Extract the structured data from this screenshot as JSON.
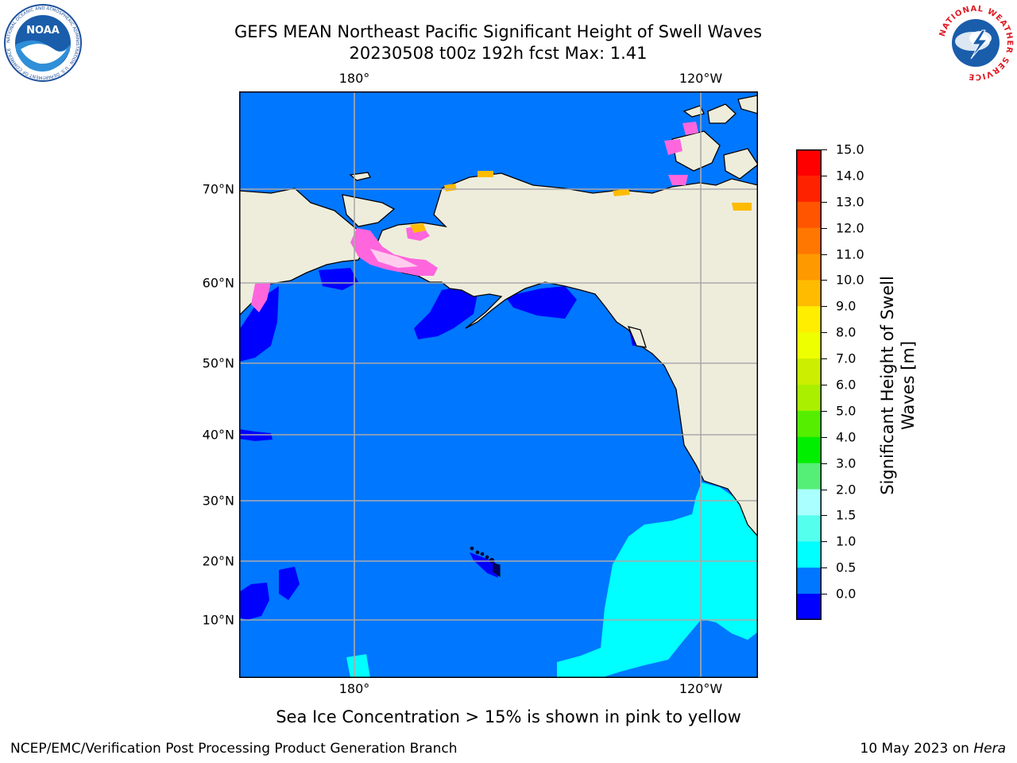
{
  "title_line1": "GEFS MEAN Northeast Pacific Significant Height of Swell Waves",
  "title_line2": "20230508 t00z 192h fcst   Max: 1.41",
  "map": {
    "lon_labels_top": [
      "180°",
      "120°W"
    ],
    "lon_labels_bottom": [
      "180°",
      "120°W"
    ],
    "lat_labels": [
      "70°N",
      "60°N",
      "50°N",
      "40°N",
      "30°N",
      "20°N",
      "10°N"
    ]
  },
  "colorbar": {
    "label_line1": "Significant Height of Swell",
    "label_line2": "Waves [m]",
    "ticks": [
      "15.0",
      "14.0",
      "13.0",
      "12.0",
      "11.0",
      "10.0",
      "9.0",
      "8.0",
      "7.0",
      "6.0",
      "5.0",
      "4.0",
      "3.0",
      "2.0",
      "1.5",
      "1.0",
      "0.5",
      "0.0"
    ],
    "colors": [
      "#ff0000",
      "#ff2200",
      "#ff5500",
      "#ff7700",
      "#ff9900",
      "#ffbb00",
      "#ffee00",
      "#eeff00",
      "#ccee00",
      "#aaee00",
      "#55ee00",
      "#00ee00",
      "#55ee77",
      "#aaffff",
      "#55ffee",
      "#00ffff",
      "#0077ff",
      "#0000ff"
    ]
  },
  "colors": {
    "land": "#eeeddc",
    "ocean_main": "#0077ff",
    "ocean_low": "#0000ff",
    "ocean_mid": "#00ffff",
    "ice": "#ff66dd",
    "grid": "#aaaaaa"
  },
  "ice_note": "Sea Ice Concentration > 15% is shown in pink to yellow",
  "footer_left": "NCEP/EMC/Verification Post Processing Product Generation Branch",
  "footer_right_date": "10 May 2023 on ",
  "footer_right_host": "Hera",
  "logos": {
    "noaa_text": "NOAA",
    "noaa_ring": "NATIONAL OCEANIC AND ATMOSPHERIC ADMINISTRATION · U.S. DEPARTMENT OF COMMERCE",
    "nws_ring": "NATIONAL WEATHER SERVICE"
  }
}
